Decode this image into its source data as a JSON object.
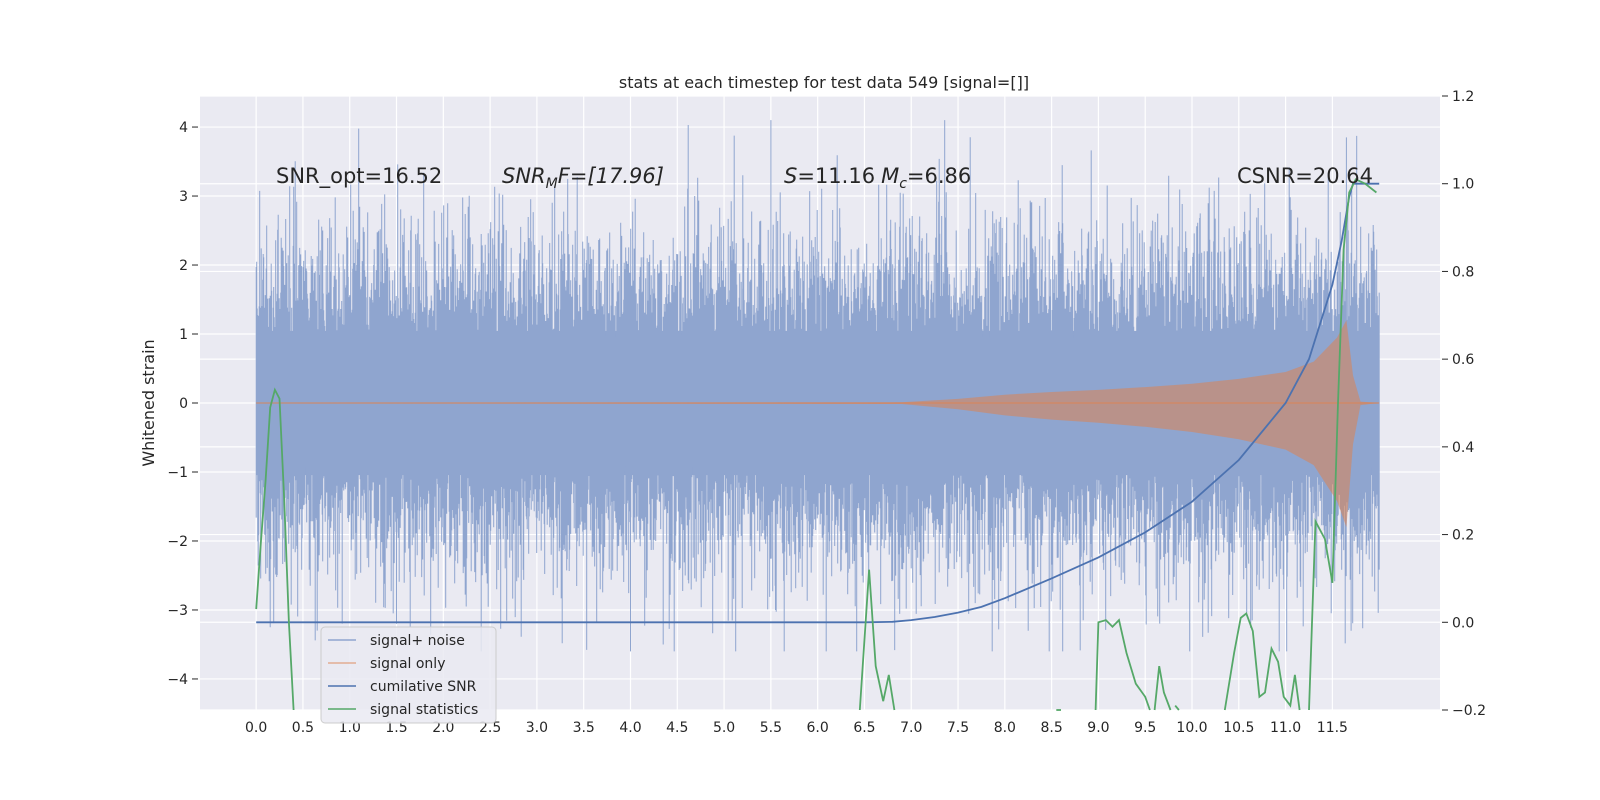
{
  "chart_data": {
    "type": "line",
    "title": "stats at each timestep for test data 549 [signal=[]]",
    "ylabel": "Whitened strain",
    "xlabel": "",
    "xlim": [
      -0.6,
      12.65
    ],
    "ylim": [
      -4.45,
      4.45
    ],
    "y2lim": [
      -0.2,
      1.2
    ],
    "grid": true,
    "x_ticks": [
      0.0,
      0.5,
      1.0,
      1.5,
      2.0,
      2.5,
      3.0,
      3.5,
      4.0,
      4.5,
      5.0,
      5.5,
      6.0,
      6.5,
      7.0,
      7.5,
      8.0,
      8.5,
      9.0,
      9.5,
      10.0,
      10.5,
      11.0,
      11.5
    ],
    "x_tick_labels": [
      "0.0",
      "0.5",
      "1.0",
      "1.5",
      "2.0",
      "2.5",
      "3.0",
      "3.5",
      "4.0",
      "4.5",
      "5.0",
      "5.5",
      "6.0",
      "6.5",
      "7.0",
      "7.5",
      "8.0",
      "8.5",
      "9.0",
      "9.5",
      "10.0",
      "10.5",
      "11.0",
      "11.5"
    ],
    "y_ticks": [
      -4,
      -3,
      -2,
      -1,
      0,
      1,
      2,
      3,
      4
    ],
    "y_tick_labels": [
      "−4",
      "−3",
      "−2",
      "−1",
      "0",
      "1",
      "2",
      "3",
      "4"
    ],
    "y2_ticks": [
      -0.2,
      0.0,
      0.2,
      0.4,
      0.6,
      0.8,
      1.0,
      1.2
    ],
    "y2_tick_labels": [
      "−0.2",
      "0.0",
      "0.2",
      "0.4",
      "0.6",
      "0.8",
      "1.0",
      "1.2"
    ],
    "annotations": {
      "snr_opt": "SNR_opt=16.52",
      "snr_mf_main": "SNR",
      "snr_mf_sub": "M",
      "snr_mf_rest": "F=[17.96]",
      "s_main": "S",
      "s_rest": "=11.16",
      "mc_main": "M",
      "mc_sub": "c",
      "mc_rest": "=6.86",
      "csnr": "CSNR=20.64"
    },
    "legend": {
      "placement": "lower-left",
      "entries": [
        "signal+ noise",
        "signal only",
        "cumilative SNR",
        "signal statistics"
      ]
    },
    "series": [
      {
        "name": "signal+ noise",
        "color": "#8fa5cf",
        "kind": "noise-band",
        "x_range": [
          0.0,
          12.0
        ],
        "typical_upper": 1.9,
        "typical_lower": -1.9,
        "max": 4.1,
        "min": -3.6
      },
      {
        "name": "signal only",
        "color": "#dd8452",
        "kind": "chirp",
        "x_range": [
          0.0,
          12.0
        ],
        "envelope": [
          [
            0.0,
            0.0
          ],
          [
            6.9,
            0.01
          ],
          [
            7.5,
            0.06
          ],
          [
            8.0,
            0.12
          ],
          [
            8.5,
            0.16
          ],
          [
            9.0,
            0.19
          ],
          [
            9.5,
            0.23
          ],
          [
            10.0,
            0.28
          ],
          [
            10.5,
            0.35
          ],
          [
            11.0,
            0.45
          ],
          [
            11.3,
            0.6
          ],
          [
            11.55,
            0.95
          ],
          [
            11.65,
            1.2
          ],
          [
            11.72,
            0.4
          ],
          [
            11.8,
            0.02
          ],
          [
            12.0,
            0.0
          ]
        ]
      },
      {
        "name": "cumilative SNR",
        "color": "#4c72b0",
        "axis": "right",
        "points": [
          [
            0.0,
            0.0
          ],
          [
            6.5,
            0.0
          ],
          [
            6.8,
            0.001
          ],
          [
            7.0,
            0.005
          ],
          [
            7.25,
            0.012
          ],
          [
            7.5,
            0.022
          ],
          [
            7.75,
            0.035
          ],
          [
            8.0,
            0.055
          ],
          [
            8.5,
            0.1
          ],
          [
            9.0,
            0.148
          ],
          [
            9.5,
            0.205
          ],
          [
            10.0,
            0.275
          ],
          [
            10.5,
            0.37
          ],
          [
            11.0,
            0.5
          ],
          [
            11.25,
            0.6
          ],
          [
            11.5,
            0.77
          ],
          [
            11.6,
            0.87
          ],
          [
            11.68,
            0.97
          ],
          [
            11.72,
            1.0
          ],
          [
            12.0,
            1.0
          ]
        ]
      },
      {
        "name": "signal statistics",
        "color": "#55a868",
        "axis": "right",
        "segments": [
          [
            [
              0.0,
              0.03
            ],
            [
              0.05,
              0.18
            ],
            [
              0.1,
              0.32
            ],
            [
              0.15,
              0.49
            ],
            [
              0.2,
              0.53
            ],
            [
              0.25,
              0.51
            ],
            [
              0.3,
              0.28
            ],
            [
              0.35,
              0.0
            ],
            [
              0.4,
              -0.22
            ]
          ],
          [
            [
              6.45,
              -0.22
            ],
            [
              6.55,
              0.12
            ],
            [
              6.62,
              -0.1
            ],
            [
              6.7,
              -0.18
            ],
            [
              6.76,
              -0.12
            ],
            [
              6.82,
              -0.22
            ]
          ],
          [
            [
              8.55,
              -0.2
            ],
            [
              8.6,
              -0.22
            ]
          ],
          [
            [
              8.97,
              -0.22
            ],
            [
              9.0,
              0.0
            ],
            [
              9.08,
              0.005
            ],
            [
              9.15,
              -0.01
            ],
            [
              9.22,
              0.005
            ],
            [
              9.3,
              -0.07
            ],
            [
              9.4,
              -0.14
            ],
            [
              9.5,
              -0.17
            ],
            [
              9.55,
              -0.22
            ]
          ],
          [
            [
              9.6,
              -0.22
            ],
            [
              9.65,
              -0.1
            ],
            [
              9.7,
              -0.16
            ],
            [
              9.77,
              -0.22
            ]
          ],
          [
            [
              9.82,
              -0.19
            ],
            [
              9.86,
              -0.22
            ]
          ],
          [
            [
              10.35,
              -0.22
            ],
            [
              10.45,
              -0.07
            ],
            [
              10.52,
              0.01
            ],
            [
              10.58,
              0.02
            ],
            [
              10.65,
              -0.02
            ],
            [
              10.72,
              -0.17
            ],
            [
              10.78,
              -0.16
            ],
            [
              10.85,
              -0.06
            ],
            [
              10.92,
              -0.09
            ],
            [
              10.98,
              -0.17
            ],
            [
              11.05,
              -0.19
            ],
            [
              11.1,
              -0.12
            ],
            [
              11.15,
              -0.22
            ]
          ],
          [
            [
              11.25,
              -0.22
            ],
            [
              11.32,
              0.23
            ],
            [
              11.42,
              0.19
            ],
            [
              11.5,
              0.09
            ],
            [
              11.56,
              0.5
            ],
            [
              11.62,
              0.85
            ],
            [
              11.68,
              0.98
            ],
            [
              11.75,
              1.01
            ],
            [
              11.85,
              1.0
            ],
            [
              11.97,
              0.98
            ]
          ]
        ]
      }
    ]
  }
}
